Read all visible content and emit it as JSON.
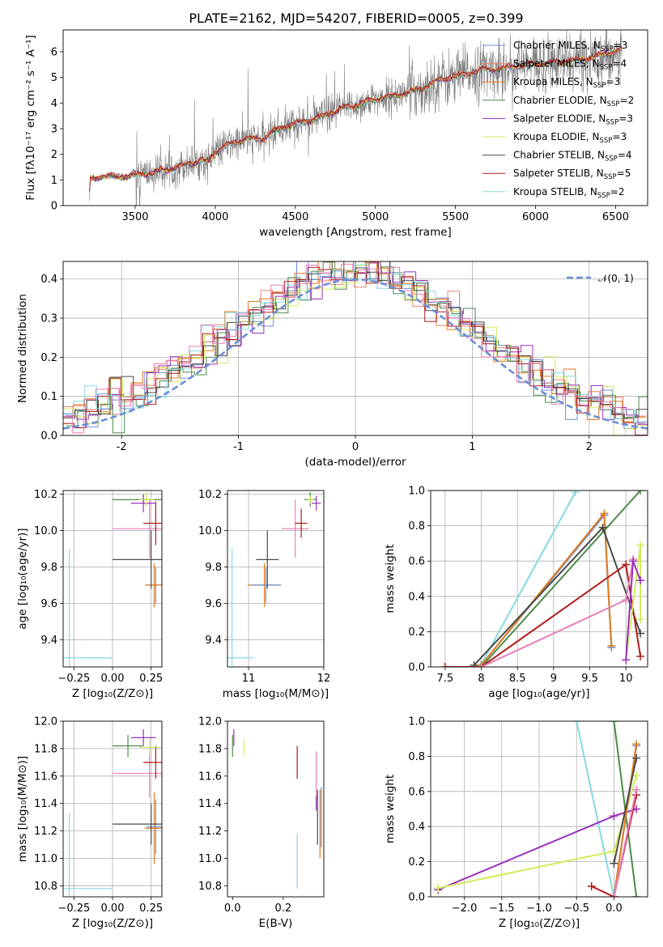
{
  "figure": {
    "title": "PLATE=2162, MJD=54207, FIBERID=0005, z=0.399"
  },
  "colors": {
    "chabrier_miles": "#6d8fd6",
    "salpeter_miles": "#e8866a",
    "kroupa_miles": "#e07b1a",
    "chabrier_elodie": "#4e8a4a",
    "salpeter_elodie": "#9a2fbd",
    "kroupa_elodie": "#d4ea5b",
    "chabrier_stelib": "#4a4a4a",
    "salpeter_stelib": "#b01b1b",
    "kroupa_stelib": "#86d9e0",
    "data": "#808080",
    "gaussian": "#6a8fd8",
    "pink": "#e87fb8"
  },
  "chart_data": [
    {
      "type": "line",
      "id": "spectrum",
      "title": "PLATE=2162, MJD=54207, FIBERID=0005, z=0.399",
      "xlabel": "wavelength [Angstrom, rest frame]",
      "ylabel": "Flux [fλ10⁻¹⁷ erg cm⁻² s⁻¹ A⁻¹]",
      "xlim": [
        3050,
        6700
      ],
      "ylim": [
        0,
        6.85
      ],
      "xticks": [
        3500,
        4000,
        4500,
        5000,
        5500,
        6000,
        6500
      ],
      "yticks": [
        0,
        1,
        2,
        3,
        4,
        5,
        6
      ],
      "continuum": [
        [
          3210,
          0
        ],
        [
          3220,
          1.0
        ],
        [
          3300,
          1.15
        ],
        [
          3400,
          1.1
        ],
        [
          3500,
          1.2
        ],
        [
          3600,
          1.25
        ],
        [
          3700,
          1.4
        ],
        [
          3800,
          1.55
        ],
        [
          3900,
          1.75
        ],
        [
          3960,
          1.7
        ],
        [
          4000,
          2.1
        ],
        [
          4100,
          2.4
        ],
        [
          4200,
          2.6
        ],
        [
          4300,
          2.6
        ],
        [
          4400,
          3.0
        ],
        [
          4500,
          3.2
        ],
        [
          4600,
          3.35
        ],
        [
          4700,
          3.55
        ],
        [
          4800,
          3.8
        ],
        [
          4900,
          3.95
        ],
        [
          5000,
          4.15
        ],
        [
          5100,
          4.25
        ],
        [
          5200,
          4.4
        ],
        [
          5300,
          4.6
        ],
        [
          5400,
          4.9
        ],
        [
          5500,
          5.0
        ],
        [
          5600,
          5.2
        ],
        [
          5700,
          5.3
        ],
        [
          5800,
          5.35
        ],
        [
          5900,
          5.45
        ],
        [
          6000,
          5.5
        ],
        [
          6100,
          5.55
        ],
        [
          6200,
          5.6
        ],
        [
          6300,
          5.7
        ],
        [
          6400,
          5.85
        ],
        [
          6500,
          6.0
        ],
        [
          6540,
          6.05
        ]
      ],
      "legend": [
        {
          "label": "Chabrier MILES, N",
          "sub": "SSP",
          "suffix": "=3",
          "color_key": "chabrier_miles"
        },
        {
          "label": "Salpeter MILES, N",
          "sub": "SSP",
          "suffix": "=4",
          "color_key": "salpeter_miles"
        },
        {
          "label": "Kroupa MILES, N",
          "sub": "SSP",
          "suffix": "=3",
          "color_key": "kroupa_miles"
        },
        {
          "label": "Chabrier ELODIE, N",
          "sub": "SSP",
          "suffix": "=2",
          "color_key": "chabrier_elodie"
        },
        {
          "label": "Salpeter ELODIE, N",
          "sub": "SSP",
          "suffix": "=3",
          "color_key": "salpeter_elodie"
        },
        {
          "label": "Kroupa ELODIE, N",
          "sub": "SSP",
          "suffix": "=3",
          "color_key": "kroupa_elodie"
        },
        {
          "label": "Chabrier STELIB, N",
          "sub": "SSP",
          "suffix": "=4",
          "color_key": "chabrier_stelib"
        },
        {
          "label": "Salpeter STELIB, N",
          "sub": "SSP",
          "suffix": "=5",
          "color_key": "salpeter_stelib"
        },
        {
          "label": "Kroupa STELIB, N",
          "sub": "SSP",
          "suffix": "=2",
          "color_key": "kroupa_stelib"
        }
      ],
      "legend_placement": "upper-right"
    },
    {
      "type": "line",
      "id": "residuals",
      "xlabel": "(data-model)/error",
      "ylabel": "Normed distribution",
      "xlim": [
        -2.5,
        2.5
      ],
      "ylim": [
        0,
        0.445
      ],
      "xticks": [
        -2,
        -1,
        0,
        1,
        2
      ],
      "yticks": [
        0.0,
        0.1,
        0.2,
        0.3,
        0.4
      ],
      "grid": true,
      "gaussian_label": "𝒩(0, 1)",
      "legend_placement": "upper-right"
    },
    {
      "type": "scatter",
      "id": "age_vs_Z",
      "xlabel": "Z [log₁₀(Z/Z⊙)]",
      "ylabel": "age  [log₁₀(age/yr)]",
      "xlim": [
        -0.32,
        0.32
      ],
      "ylim": [
        9.25,
        10.22
      ],
      "xticks": [
        -0.25,
        0.0,
        0.25
      ],
      "xticklabels": [
        "−0.25",
        "0.00",
        "0.25"
      ],
      "yticks": [
        9.4,
        9.6,
        9.8,
        10.0,
        10.2
      ],
      "grid": true,
      "points": [
        {
          "x": 0.28,
          "y": 9.7,
          "xerr": 0.06,
          "yerr": 0.1,
          "color_key": "chabrier_miles"
        },
        {
          "x": 0.27,
          "y": 9.7,
          "xerr": 0.06,
          "yerr": 0.12,
          "color_key": "kroupa_miles"
        },
        {
          "x": 0.24,
          "y": 10.01,
          "xerr": 0.24,
          "yerr": 0.16,
          "color_key": "pink"
        },
        {
          "x": 0.28,
          "y": 10.04,
          "xerr": 0.08,
          "yerr": 0.12,
          "color_key": "salpeter_stelib"
        },
        {
          "x": 0.2,
          "y": 10.17,
          "xerr": 0.2,
          "yerr": 0.02,
          "color_key": "chabrier_elodie"
        },
        {
          "x": 0.2,
          "y": 10.15,
          "xerr": 0.08,
          "yerr": 0.05,
          "color_key": "salpeter_elodie"
        },
        {
          "x": 0.22,
          "y": 10.17,
          "xerr": 0.05,
          "yerr": 0.04,
          "color_key": "kroupa_elodie"
        },
        {
          "x": 0.25,
          "y": 9.84,
          "xerr": 0.25,
          "yerr": 0.16,
          "color_key": "chabrier_stelib"
        },
        {
          "x": -0.28,
          "y": 9.3,
          "xerr": 0.28,
          "yerr": 0.6,
          "color_key": "kroupa_stelib"
        }
      ]
    },
    {
      "type": "scatter",
      "id": "age_vs_mass",
      "xlabel": "mass [log₁₀(M/M⊙)]",
      "xlim": [
        10.72,
        12.0
      ],
      "ylim": [
        9.25,
        10.22
      ],
      "xticks": [
        11,
        12
      ],
      "yticks": [
        9.4,
        9.6,
        9.8,
        10.0,
        10.2
      ],
      "grid": true,
      "points": [
        {
          "x": 11.21,
          "y": 9.7,
          "xerr": 0.22,
          "yerr": 0.12,
          "color_key": "kroupa_miles"
        },
        {
          "x": 11.23,
          "y": 9.7,
          "xerr": 0.2,
          "yerr": 0.1,
          "color_key": "chabrier_miles"
        },
        {
          "x": 11.25,
          "y": 9.84,
          "xerr": 0.15,
          "yerr": 0.16,
          "color_key": "chabrier_stelib"
        },
        {
          "x": 11.62,
          "y": 10.01,
          "xerr": 0.18,
          "yerr": 0.16,
          "color_key": "pink"
        },
        {
          "x": 11.7,
          "y": 10.04,
          "xerr": 0.08,
          "yerr": 0.08,
          "color_key": "salpeter_stelib"
        },
        {
          "x": 11.82,
          "y": 10.17,
          "xerr": 0.08,
          "yerr": 0.04,
          "color_key": "chabrier_elodie"
        },
        {
          "x": 11.9,
          "y": 10.15,
          "xerr": 0.06,
          "yerr": 0.04,
          "color_key": "salpeter_elodie"
        },
        {
          "x": 11.82,
          "y": 10.17,
          "xerr": 0.04,
          "yerr": 0.02,
          "color_key": "kroupa_elodie"
        },
        {
          "x": 10.78,
          "y": 9.3,
          "xerr": 0.28,
          "yerr": 0.6,
          "color_key": "kroupa_stelib"
        }
      ]
    },
    {
      "type": "line",
      "id": "weight_vs_age",
      "xlabel": "age  [log₁₀(age/yr)]",
      "ylabel": "mass weight",
      "xlim": [
        7.3,
        10.3
      ],
      "ylim": [
        0.0,
        1.0
      ],
      "xticks": [
        7.5,
        8.0,
        8.5,
        9.0,
        9.5,
        10.0
      ],
      "yticks": [
        0.0,
        0.2,
        0.4,
        0.6,
        0.8,
        1.0
      ],
      "grid": true,
      "series": [
        {
          "color_key": "kroupa_stelib",
          "points": [
            [
              7.98,
              0.0
            ],
            [
              9.3,
              0.99
            ]
          ]
        },
        {
          "color_key": "chabrier_miles",
          "points": [
            [
              8.0,
              0.01
            ],
            [
              9.7,
              0.86
            ],
            [
              9.8,
              0.11
            ]
          ]
        },
        {
          "color_key": "kroupa_miles",
          "points": [
            [
              8.0,
              0.01
            ],
            [
              9.7,
              0.87
            ],
            [
              9.8,
              0.12
            ]
          ]
        },
        {
          "color_key": "chabrier_elodie",
          "points": [
            [
              8.0,
              0.0
            ],
            [
              10.2,
              1.0
            ]
          ]
        },
        {
          "color_key": "chabrier_stelib",
          "points": [
            [
              7.9,
              0.01
            ],
            [
              9.68,
              0.79
            ],
            [
              10.2,
              0.19
            ]
          ]
        },
        {
          "color_key": "salpeter_stelib",
          "points": [
            [
              7.5,
              0.0
            ],
            [
              8.0,
              0.0
            ],
            [
              10.0,
              0.58
            ],
            [
              10.2,
              0.06
            ]
          ]
        },
        {
          "color_key": "pink",
          "points": [
            [
              8.0,
              0.0
            ],
            [
              10.0,
              0.38
            ],
            [
              10.1,
              0.61
            ]
          ]
        },
        {
          "color_key": "kroupa_elodie",
          "points": [
            [
              10.0,
              0.04
            ],
            [
              10.2,
              0.69
            ],
            [
              10.2,
              0.27
            ]
          ]
        },
        {
          "color_key": "salpeter_elodie",
          "points": [
            [
              10.0,
              0.04
            ],
            [
              10.1,
              0.6
            ],
            [
              10.2,
              0.49
            ]
          ]
        }
      ]
    },
    {
      "type": "scatter",
      "id": "mass_vs_Z",
      "xlabel": "Z [log₁₀(Z/Z⊙)]",
      "ylabel": "mass [log₁₀(M/M⊙)]",
      "xlim": [
        -0.32,
        0.32
      ],
      "ylim": [
        10.72,
        12.0
      ],
      "xticks": [
        -0.25,
        0.0,
        0.25
      ],
      "xticklabels": [
        "−0.25",
        "0.00",
        "0.25"
      ],
      "yticks": [
        10.8,
        11.0,
        11.2,
        11.4,
        11.6,
        11.8,
        12.0
      ],
      "grid": true,
      "points": [
        {
          "x": 0.27,
          "y": 11.22,
          "xerr": 0.06,
          "yerr": 0.26,
          "color_key": "kroupa_miles"
        },
        {
          "x": 0.28,
          "y": 11.23,
          "xerr": 0.06,
          "yerr": 0.2,
          "color_key": "chabrier_miles"
        },
        {
          "x": 0.25,
          "y": 11.25,
          "xerr": 0.25,
          "yerr": 0.15,
          "color_key": "chabrier_stelib"
        },
        {
          "x": 0.24,
          "y": 11.62,
          "xerr": 0.24,
          "yerr": 0.18,
          "color_key": "pink"
        },
        {
          "x": 0.28,
          "y": 11.7,
          "xerr": 0.08,
          "yerr": 0.12,
          "color_key": "salpeter_stelib"
        },
        {
          "x": 0.1,
          "y": 11.82,
          "xerr": 0.1,
          "yerr": 0.08,
          "color_key": "chabrier_elodie"
        },
        {
          "x": 0.2,
          "y": 11.88,
          "xerr": 0.08,
          "yerr": 0.06,
          "color_key": "salpeter_elodie"
        },
        {
          "x": 0.24,
          "y": 11.81,
          "xerr": 0.07,
          "yerr": 0.06,
          "color_key": "kroupa_elodie"
        },
        {
          "x": -0.28,
          "y": 10.78,
          "xerr": 0.28,
          "yerr": 0.55,
          "color_key": "kroupa_stelib"
        }
      ]
    },
    {
      "type": "scatter",
      "id": "mass_vs_ebv",
      "xlabel": "E(B-V)",
      "xlim": [
        -0.02,
        0.36
      ],
      "ylim": [
        10.72,
        12.0
      ],
      "xticks": [
        0.0,
        0.2
      ],
      "xticklabels": [
        "0.0",
        "0.2"
      ],
      "yticks": [
        10.8,
        11.0,
        11.2,
        11.4,
        11.6,
        11.8,
        12.0
      ],
      "grid": false,
      "points": [
        {
          "x": 0.0,
          "y": 11.82,
          "xerr": 0.0,
          "yerr": 0.08,
          "color_key": "chabrier_elodie"
        },
        {
          "x": 0.005,
          "y": 11.88,
          "xerr": 0.0,
          "yerr": 0.06,
          "color_key": "salpeter_elodie"
        },
        {
          "x": 0.045,
          "y": 11.81,
          "xerr": 0.0,
          "yerr": 0.06,
          "color_key": "kroupa_elodie"
        },
        {
          "x": 0.255,
          "y": 11.7,
          "xerr": 0.0,
          "yerr": 0.12,
          "color_key": "salpeter_stelib"
        },
        {
          "x": 0.255,
          "y": 10.98,
          "xerr": 0.0,
          "yerr": 0.2,
          "color_key": "kroupa_stelib"
        },
        {
          "x": 0.33,
          "y": 11.6,
          "xerr": 0.0,
          "yerr": 0.18,
          "color_key": "pink"
        },
        {
          "x": 0.33,
          "y": 11.4,
          "xerr": 0.0,
          "yerr": 0.05,
          "color_key": "salpeter_elodie"
        },
        {
          "x": 0.335,
          "y": 11.3,
          "xerr": 0.0,
          "yerr": 0.2,
          "color_key": "chabrier_stelib"
        },
        {
          "x": 0.345,
          "y": 11.25,
          "xerr": 0.0,
          "yerr": 0.25,
          "color_key": "kroupa_miles"
        },
        {
          "x": 0.35,
          "y": 11.3,
          "xerr": 0.0,
          "yerr": 0.22,
          "color_key": "chabrier_miles"
        }
      ]
    },
    {
      "type": "line",
      "id": "weight_vs_Z",
      "xlabel": "Z [log₁₀(Z/Z⊙)]",
      "ylabel": "mass weight",
      "xlim": [
        -2.45,
        0.45
      ],
      "ylim": [
        0.0,
        1.0
      ],
      "xticks": [
        -2.0,
        -1.5,
        -1.0,
        -0.5,
        0.0
      ],
      "xticklabels": [
        "−2.0",
        "−1.5",
        "−1.0",
        "−0.5",
        "0.0"
      ],
      "yticks": [
        0.0,
        0.2,
        0.4,
        0.6,
        0.8,
        1.0
      ],
      "grid": true,
      "series": [
        {
          "color_key": "kroupa_stelib",
          "points": [
            [
              -0.5,
              1.0
            ],
            [
              0.0,
              0.0
            ]
          ]
        },
        {
          "color_key": "chabrier_elodie",
          "points": [
            [
              0.0,
              1.0
            ],
            [
              0.3,
              0.0
            ]
          ]
        },
        {
          "color_key": "salpeter_elodie",
          "points": [
            [
              -2.35,
              0.04
            ],
            [
              0.0,
              0.46
            ],
            [
              0.3,
              0.5
            ]
          ]
        },
        {
          "color_key": "kroupa_elodie",
          "points": [
            [
              -2.35,
              0.05
            ],
            [
              0.0,
              0.26
            ],
            [
              0.3,
              0.69
            ]
          ]
        },
        {
          "color_key": "chabrier_miles",
          "points": [
            [
              0.0,
              0.0
            ],
            [
              0.3,
              0.86
            ]
          ]
        },
        {
          "color_key": "kroupa_miles",
          "points": [
            [
              0.0,
              0.0
            ],
            [
              0.3,
              0.87
            ]
          ]
        },
        {
          "color_key": "chabrier_stelib",
          "points": [
            [
              0.0,
              0.19
            ],
            [
              0.3,
              0.79
            ]
          ]
        },
        {
          "color_key": "salpeter_stelib",
          "points": [
            [
              -0.3,
              0.06
            ],
            [
              0.0,
              0.0
            ],
            [
              0.3,
              0.58
            ]
          ]
        },
        {
          "color_key": "pink",
          "points": [
            [
              0.0,
              0.0
            ],
            [
              0.3,
              0.61
            ]
          ]
        }
      ]
    }
  ]
}
